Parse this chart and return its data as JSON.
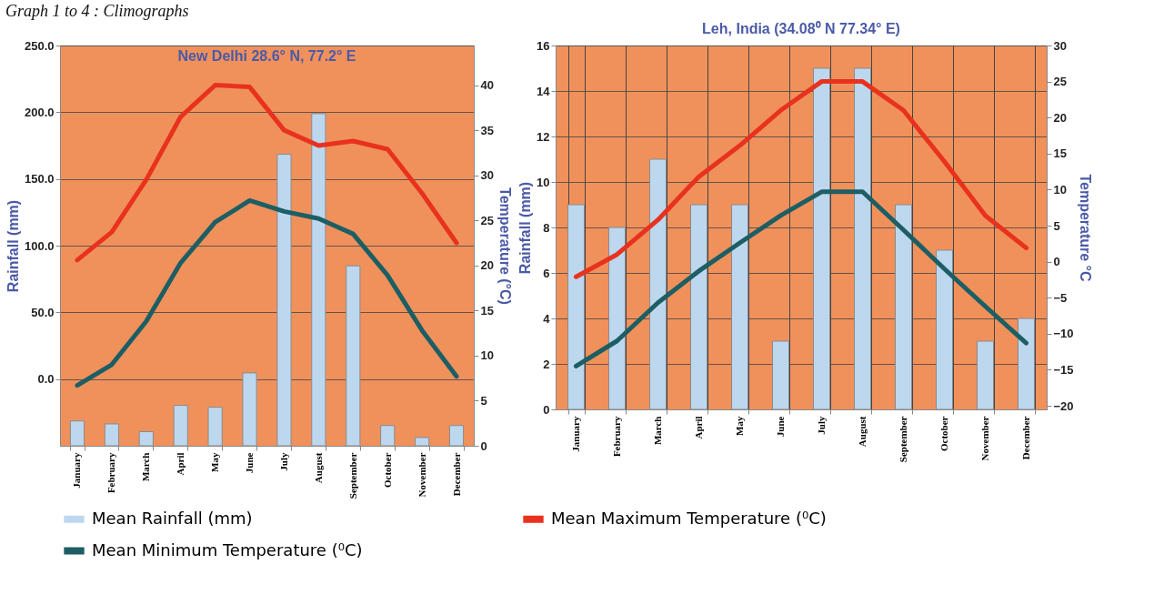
{
  "chart_data": [
    {
      "type": "bar",
      "title": "New Delhi 28.6° N, 77.2° E",
      "annotations": [
        "Graph 1 to 4 : Climographs"
      ],
      "ylabel": "Rainfall (mm)",
      "y2label": "Temperature (°C)",
      "categories": [
        "January",
        "February",
        "March",
        "April",
        "May",
        "June",
        "July",
        "August",
        "September",
        "October",
        "November",
        "December"
      ],
      "series": [
        {
          "name": "Mean Rainfall (mm)",
          "color": "#bdd7ee",
          "values": [
            18.6,
            16.4,
            10.6,
            30.3,
            28.9,
            54.6,
            218.5,
            248.9,
            134.9,
            15.2,
            6.2,
            15.2
          ],
          "base": [
            -50,
            -50,
            -50,
            -50,
            -50,
            -50,
            -50,
            -50,
            -50,
            -50,
            -50,
            -50
          ]
        },
        {
          "name": "Mean Maximum Temperature (⁰C)",
          "type": "line",
          "axis": "y2",
          "color": "#e8321e",
          "values": [
            20.6,
            23.7,
            29.5,
            36.5,
            40.0,
            39.8,
            35.0,
            33.3,
            33.8,
            32.9,
            28.0,
            22.5
          ]
        },
        {
          "name": "Mean Minimum Temperature (⁰C)",
          "type": "line",
          "axis": "y2",
          "color": "#1c5e64",
          "values": [
            6.7,
            9.0,
            13.8,
            20.3,
            24.8,
            27.2,
            26.0,
            25.2,
            23.5,
            18.9,
            12.8,
            7.7
          ]
        }
      ],
      "ylim": [
        -50,
        250
      ],
      "yticks": [
        {
          "value": 0,
          "label": "0.0"
        },
        {
          "value": 50,
          "label": "50.0"
        },
        {
          "value": 100,
          "label": "100.0"
        },
        {
          "value": 150,
          "label": "150.0"
        },
        {
          "value": 200,
          "label": "200.0"
        },
        {
          "value": 250,
          "label": "250.0"
        }
      ],
      "y2lim": [
        0,
        44.4
      ],
      "y2ticks": [
        0,
        5,
        10,
        15,
        20,
        25,
        30,
        35,
        40
      ],
      "grid": "y",
      "legend": "bottom"
    },
    {
      "type": "bar",
      "title": "Leh, India (34.08⁰ N 77.34° E)",
      "ylabel": "Rainfall (mm)",
      "y2label": "Temperature °C",
      "categories": [
        "January",
        "February",
        "March",
        "April",
        "May",
        "June",
        "July",
        "August",
        "September",
        "October",
        "November",
        "December"
      ],
      "series": [
        {
          "color": "#bdd7ee",
          "values": [
            9,
            8,
            11,
            9,
            9,
            3,
            15,
            15,
            9,
            7,
            3,
            4
          ]
        },
        {
          "type": "line",
          "axis": "y2",
          "color": "#e8321e",
          "values": [
            -2.1,
            1.0,
            5.8,
            11.8,
            16.1,
            21.0,
            25.0,
            25.0,
            21.0,
            13.9,
            6.4,
            1.9
          ]
        },
        {
          "type": "line",
          "axis": "y2",
          "color": "#1c5e64",
          "values": [
            -14.5,
            -11.0,
            -5.7,
            -1.3,
            2.6,
            6.4,
            9.7,
            9.7,
            4.4,
            -1.0,
            -6.2,
            -11.3
          ]
        }
      ],
      "ylim": [
        0,
        16
      ],
      "yticks": [
        0,
        2,
        4,
        6,
        8,
        10,
        12,
        14,
        16
      ],
      "y2lim": [
        -20.5,
        30
      ],
      "y2ticks": [
        -20,
        -15,
        -10,
        -5,
        0,
        5,
        10,
        15,
        20,
        25,
        30
      ],
      "grid": true
    }
  ]
}
